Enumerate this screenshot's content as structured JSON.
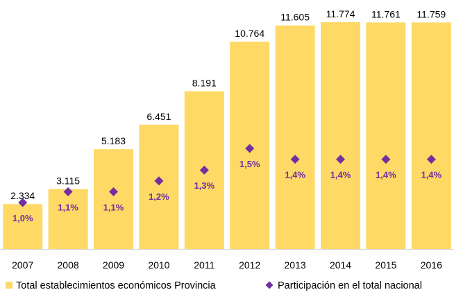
{
  "colors": {
    "bar": "#FFD966",
    "marker": "#7030A0",
    "pct_text": "#7030A0",
    "axis": "#D9D9D9"
  },
  "chart_data": {
    "type": "bar",
    "title": "",
    "xlabel": "",
    "ylabel": "",
    "categories": [
      "2007",
      "2008",
      "2009",
      "2010",
      "2011",
      "2012",
      "2013",
      "2014",
      "2015",
      "2016"
    ],
    "ylim": [
      0,
      12000
    ],
    "grid": false,
    "legend_position": "bottom",
    "series": [
      {
        "name": "Total establecimientos económicos Provincia",
        "type": "bar",
        "values": [
          2334,
          3115,
          5183,
          6451,
          8191,
          10764,
          11605,
          11774,
          11761,
          11759
        ],
        "labels": [
          "2.334",
          "3.115",
          "5.183",
          "6.451",
          "8.191",
          "10.764",
          "11.605",
          "11.774",
          "11.761",
          "11.759"
        ]
      },
      {
        "name": "Participación en el total nacional",
        "type": "scatter",
        "marker": "diamond",
        "values": [
          1.0,
          1.1,
          1.1,
          1.2,
          1.3,
          1.5,
          1.4,
          1.4,
          1.4,
          1.4
        ],
        "labels": [
          "1,0%",
          "1,1%",
          "1,1%",
          "1,2%",
          "1,3%",
          "1,5%",
          "1,4%",
          "1,4%",
          "1,4%",
          "1,4%"
        ]
      }
    ]
  }
}
